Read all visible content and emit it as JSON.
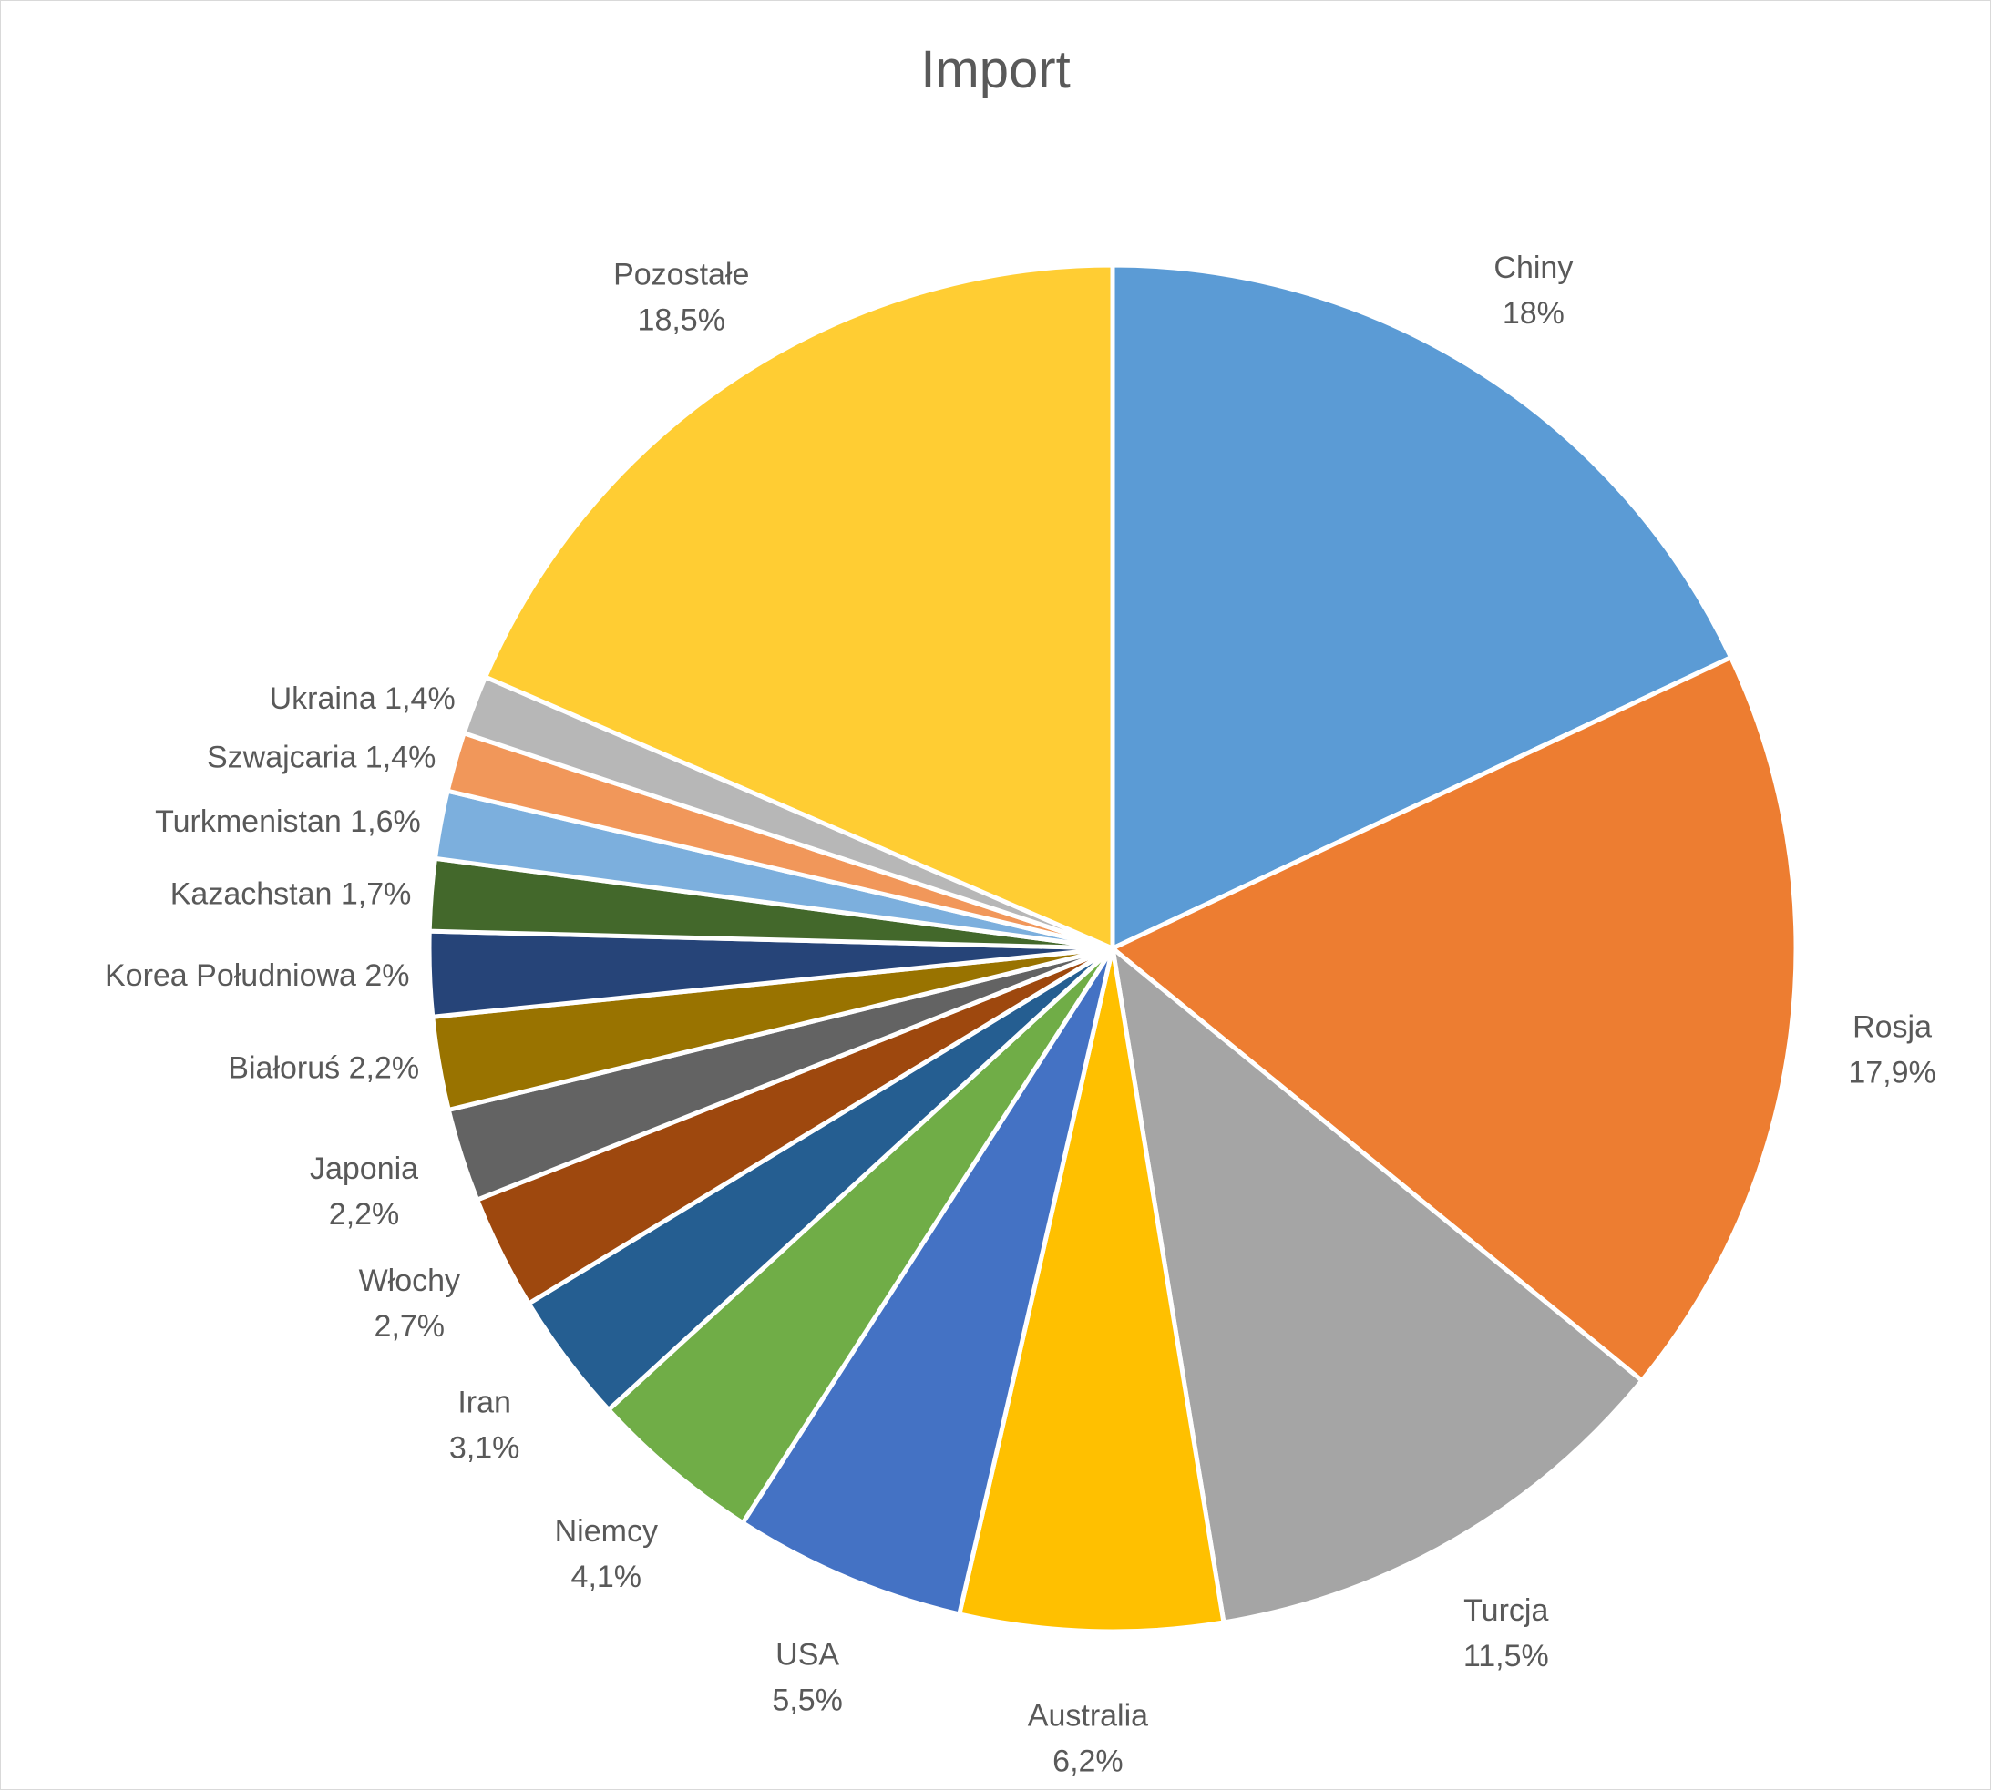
{
  "chart_data": {
    "type": "pie",
    "title": "Import",
    "slices": [
      {
        "label": "Chiny",
        "value": 18,
        "value_label": "18%",
        "color": "#5B9BD5",
        "label_style": "stacked"
      },
      {
        "label": "Rosja",
        "value": 17.9,
        "value_label": "17,9%",
        "color": "#ED7D31",
        "label_style": "stacked"
      },
      {
        "label": "Turcja",
        "value": 11.5,
        "value_label": "11,5%",
        "color": "#A5A5A5",
        "label_style": "stacked"
      },
      {
        "label": "Australia",
        "value": 6.2,
        "value_label": "6,2%",
        "color": "#FFC000",
        "label_style": "stacked"
      },
      {
        "label": "USA",
        "value": 5.5,
        "value_label": "5,5%",
        "color": "#4472C4",
        "label_style": "stacked"
      },
      {
        "label": "Niemcy",
        "value": 4.1,
        "value_label": "4,1%",
        "color": "#70AD47",
        "label_style": "stacked"
      },
      {
        "label": "Iran",
        "value": 3.1,
        "value_label": "3,1%",
        "color": "#255E91",
        "label_style": "stacked"
      },
      {
        "label": "Włochy",
        "value": 2.7,
        "value_label": "2,7%",
        "color": "#9E480E",
        "label_style": "stacked"
      },
      {
        "label": "Japonia",
        "value": 2.2,
        "value_label": "2,2%",
        "color": "#636363",
        "label_style": "stacked"
      },
      {
        "label": "Białoruś",
        "value": 2.2,
        "value_label": "2,2%",
        "color": "#997300",
        "label_style": "inline"
      },
      {
        "label": "Korea Południowa",
        "value": 2.0,
        "value_label": "2%",
        "color": "#264478",
        "label_style": "inline"
      },
      {
        "label": "Kazachstan",
        "value": 1.7,
        "value_label": "1,7%",
        "color": "#43682B",
        "label_style": "inline"
      },
      {
        "label": "Turkmenistan",
        "value": 1.6,
        "value_label": "1,6%",
        "color": "#7CAFDD",
        "label_style": "inline"
      },
      {
        "label": "Szwajcaria",
        "value": 1.4,
        "value_label": "1,4%",
        "color": "#F1975A",
        "label_style": "inline"
      },
      {
        "label": "Ukraina",
        "value": 1.4,
        "value_label": "1,4%",
        "color": "#B7B7B7",
        "label_style": "inline"
      },
      {
        "label": "Pozostałe",
        "value": 18.5,
        "value_label": "18,5%",
        "color": "#FFCD33",
        "label_style": "stacked"
      }
    ]
  }
}
